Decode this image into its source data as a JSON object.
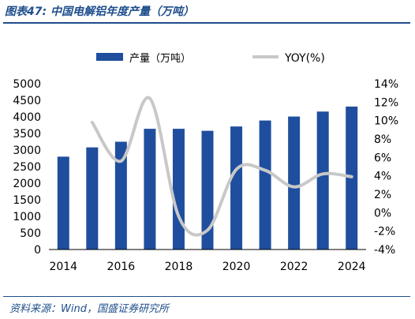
{
  "title": "图表47:  中国电解铝年度产量（万吨）",
  "source": "资料来源：Wind，国盛证券研究所",
  "colors": {
    "bar": "#1f4e9e",
    "line": "#c8c8c8",
    "accent": "#1f4e8c"
  },
  "chart_data": {
    "type": "bar+line",
    "x": [
      2014,
      2015,
      2016,
      2017,
      2018,
      2019,
      2020,
      2021,
      2022,
      2023,
      2024
    ],
    "x_tick_labels": [
      "2014",
      "2016",
      "2018",
      "2020",
      "2022",
      "2024"
    ],
    "series": [
      {
        "name": "产量（万吨）",
        "type": "bar",
        "axis": "left",
        "values": [
          2800,
          3080,
          3250,
          3640,
          3640,
          3580,
          3710,
          3890,
          4010,
          4160,
          4310
        ]
      },
      {
        "name": "YOY(%)",
        "type": "line",
        "axis": "right",
        "values": [
          null,
          9.8,
          5.6,
          12.4,
          -0.4,
          -1.9,
          4.7,
          4.6,
          2.8,
          4.2,
          3.9
        ]
      }
    ],
    "y_left": {
      "min": 0,
      "max": 5000,
      "step": 500,
      "tick_labels": [
        "0",
        "500",
        "1000",
        "1500",
        "2000",
        "2500",
        "3000",
        "3500",
        "4000",
        "4500",
        "5000"
      ]
    },
    "y_right": {
      "min": -4,
      "max": 14,
      "step": 2,
      "tick_labels": [
        "-4%",
        "-2%",
        "0%",
        "2%",
        "4%",
        "6%",
        "8%",
        "10%",
        "12%",
        "14%"
      ]
    },
    "legend": [
      "产量（万吨）",
      "YOY(%)"
    ],
    "legend_position": "top",
    "grid": false
  }
}
